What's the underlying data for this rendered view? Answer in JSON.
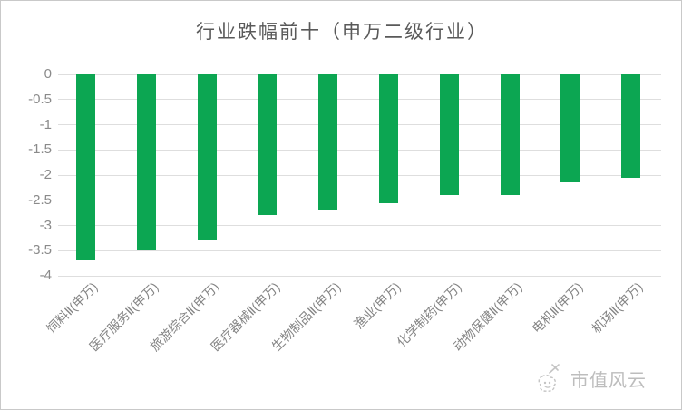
{
  "title": "行业跌幅前十（申万二级行业）",
  "watermark": {
    "text": "市值风云",
    "logo": "cloud-mascot-sketch"
  },
  "colors": {
    "bar": "#0ca652",
    "gridline": "#dedede",
    "axis_text": "#8a8a8a",
    "title_text": "#595959",
    "watermark_text": "#bdbdbd"
  },
  "chart_data": {
    "type": "bar",
    "title": "行业跌幅前十（申万二级行业）",
    "orientation": "vertical-negative",
    "categories": [
      "饲料Ⅱ(申万)",
      "医疗服务Ⅱ(申万)",
      "旅游综合Ⅱ(申万)",
      "医疗器械Ⅱ(申万)",
      "生物制品Ⅱ(申万)",
      "渔业(申万)",
      "化学制药(申万)",
      "动物保健Ⅱ(申万)",
      "电机Ⅱ(申万)",
      "机场Ⅱ(申万)"
    ],
    "values": [
      -3.7,
      -3.5,
      -3.3,
      -2.8,
      -2.7,
      -2.55,
      -2.4,
      -2.4,
      -2.15,
      -2.05
    ],
    "xlabel": "",
    "ylabel": "",
    "ylim": [
      -4,
      0
    ],
    "ytick_step": 0.5,
    "yticks": [
      "0",
      "-0.5",
      "-1",
      "-1.5",
      "-2",
      "-2.5",
      "-3",
      "-3.5",
      "-4"
    ],
    "grid": true,
    "legend_position": "none",
    "bar_color": "#0ca652"
  }
}
